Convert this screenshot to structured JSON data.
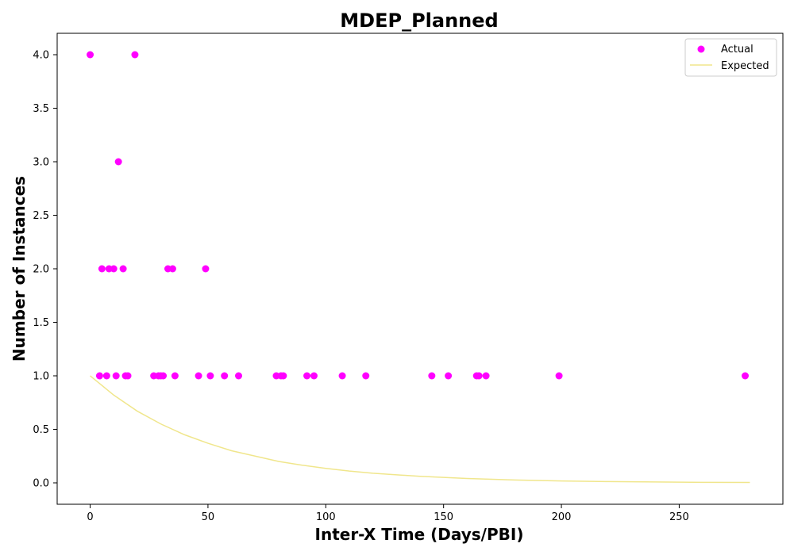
{
  "chart_data": {
    "type": "scatter",
    "title": "MDEP_Planned",
    "xlabel": "Inter-X Time (Days/PBI)",
    "ylabel": "Number of Instances",
    "xlim": [
      -14,
      294
    ],
    "ylim": [
      -0.2,
      4.2
    ],
    "xticks": [
      0,
      50,
      100,
      150,
      200,
      250
    ],
    "yticks": [
      0.0,
      0.5,
      1.0,
      1.5,
      2.0,
      2.5,
      3.0,
      3.5,
      4.0
    ],
    "xtick_labels": [
      "0",
      "50",
      "100",
      "150",
      "200",
      "250"
    ],
    "ytick_labels": [
      "0.0",
      "0.5",
      "1.0",
      "1.5",
      "2.0",
      "2.5",
      "3.0",
      "3.5",
      "4.0"
    ],
    "grid": false,
    "legend": {
      "position": "top-right",
      "entries": [
        "Actual",
        "Expected"
      ]
    },
    "colors": {
      "actual": "#ff00ff",
      "expected": "#f0e68c"
    },
    "series": [
      {
        "name": "Actual",
        "kind": "scatter",
        "points": [
          [
            0,
            4
          ],
          [
            19,
            4
          ],
          [
            12,
            3
          ],
          [
            5,
            2
          ],
          [
            8,
            2
          ],
          [
            10,
            2
          ],
          [
            14,
            2
          ],
          [
            33,
            2
          ],
          [
            35,
            2
          ],
          [
            49,
            2
          ],
          [
            4,
            1
          ],
          [
            7,
            1
          ],
          [
            11,
            1
          ],
          [
            15,
            1
          ],
          [
            16,
            1
          ],
          [
            27,
            1
          ],
          [
            29,
            1
          ],
          [
            30,
            1
          ],
          [
            31,
            1
          ],
          [
            36,
            1
          ],
          [
            46,
            1
          ],
          [
            51,
            1
          ],
          [
            57,
            1
          ],
          [
            63,
            1
          ],
          [
            79,
            1
          ],
          [
            81,
            1
          ],
          [
            82,
            1
          ],
          [
            92,
            1
          ],
          [
            95,
            1
          ],
          [
            107,
            1
          ],
          [
            117,
            1
          ],
          [
            145,
            1
          ],
          [
            152,
            1
          ],
          [
            164,
            1
          ],
          [
            165,
            1
          ],
          [
            168,
            1
          ],
          [
            199,
            1
          ],
          [
            278,
            1
          ]
        ]
      },
      {
        "name": "Expected",
        "kind": "line",
        "points": [
          [
            0,
            1.0
          ],
          [
            10,
            0.82
          ],
          [
            20,
            0.67
          ],
          [
            30,
            0.55
          ],
          [
            40,
            0.45
          ],
          [
            50,
            0.37
          ],
          [
            60,
            0.3
          ],
          [
            70,
            0.25
          ],
          [
            80,
            0.2
          ],
          [
            90,
            0.165
          ],
          [
            100,
            0.135
          ],
          [
            110,
            0.11
          ],
          [
            120,
            0.09
          ],
          [
            140,
            0.061
          ],
          [
            160,
            0.041
          ],
          [
            180,
            0.027
          ],
          [
            200,
            0.018
          ],
          [
            220,
            0.012
          ],
          [
            240,
            0.008
          ],
          [
            260,
            0.005
          ],
          [
            280,
            0.004
          ]
        ]
      }
    ]
  }
}
